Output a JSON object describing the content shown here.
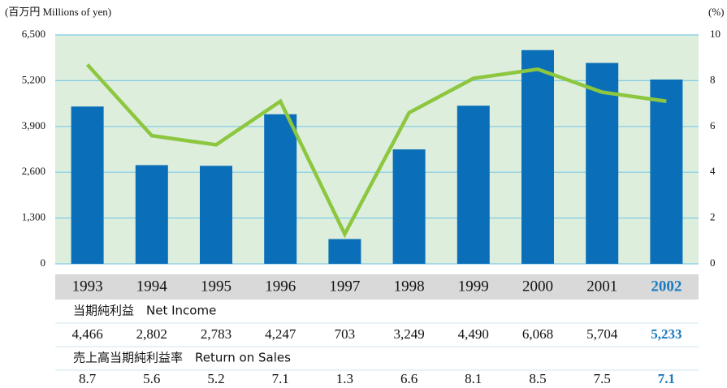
{
  "chart_data": {
    "type": "bar",
    "y_label": "(百万円 Millions of yen)",
    "y2_label": "(%)",
    "categories": [
      "1993",
      "1994",
      "1995",
      "1996",
      "1997",
      "1998",
      "1999",
      "2000",
      "2001",
      "2002"
    ],
    "highlight_index": 9,
    "highlight_color": "#1a7bbf",
    "series": [
      {
        "name": "当期純利益　Net Income",
        "type": "bar",
        "axis": "y",
        "color": "#0a6fb8",
        "values": [
          4466,
          2802,
          2783,
          4247,
          703,
          3249,
          4490,
          6068,
          5704,
          5233
        ],
        "value_labels": [
          "4,466",
          "2,802",
          "2,783",
          "4,247",
          "703",
          "3,249",
          "4,490",
          "6,068",
          "5,704",
          "5,233"
        ]
      },
      {
        "name": "売上高当期純利益率　Return on Sales",
        "type": "line",
        "axis": "y2",
        "color": "#8dc63f",
        "values": [
          8.7,
          5.6,
          5.2,
          7.1,
          1.3,
          6.6,
          8.1,
          8.5,
          7.5,
          7.1
        ]
      }
    ],
    "ylim": [
      0,
      6500
    ],
    "yticks": [
      0,
      {
        "value": 1300,
        "label": "1,300"
      },
      {
        "value": 2600,
        "label": "2,600"
      },
      {
        "value": 3900,
        "label": "3,900"
      },
      {
        "value": 5200,
        "label": "5,200"
      },
      {
        "value": 6500,
        "label": "6,500"
      }
    ],
    "y2lim": [
      0,
      10
    ],
    "y2ticks": [
      0,
      2,
      4,
      6,
      8,
      10
    ],
    "grid": true
  }
}
